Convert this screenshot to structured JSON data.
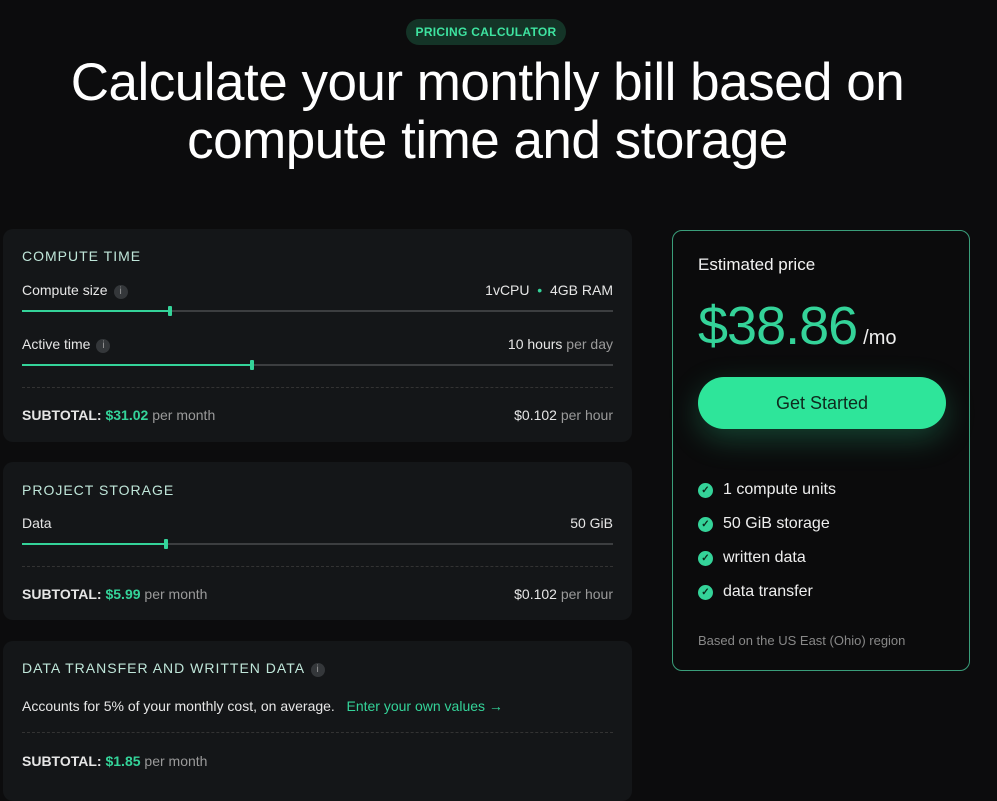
{
  "badge": "PRICING CALCULATOR",
  "title": "Calculate your monthly bill based on compute time and storage",
  "compute": {
    "title": "COMPUTE TIME",
    "size_label": "Compute size",
    "size_value_cpu": "1vCPU",
    "size_value_ram": "4GB RAM",
    "size_slider_fraction": 0.25,
    "active_label": "Active time",
    "active_value": "10 hours",
    "active_unit": "per day",
    "active_slider_fraction": 0.39,
    "subtotal_label": "SUBTOTAL:",
    "subtotal_value": "$31.02",
    "subtotal_unit": "per month",
    "rate": "$0.102",
    "rate_unit": "per hour"
  },
  "storage": {
    "title": "PROJECT STORAGE",
    "data_label": "Data",
    "data_value": "50 GiB",
    "data_slider_fraction": 0.244,
    "subtotal_label": "SUBTOTAL:",
    "subtotal_value": "$5.99",
    "subtotal_unit": "per month",
    "rate": "$0.102",
    "rate_unit": "per hour"
  },
  "transfer": {
    "title": "DATA TRANSFER AND WRITTEN DATA",
    "desc": "Accounts for 5% of your monthly cost, on average.",
    "link": "Enter your own values →",
    "subtotal_label": "SUBTOTAL:",
    "subtotal_value": "$1.85",
    "subtotal_unit": "per month"
  },
  "estimate": {
    "label": "Estimated price",
    "amount": "$38.86",
    "period": "/mo",
    "cta": "Get Started",
    "features": [
      "1 compute units",
      "50 GiB storage",
      "written data",
      "data transfer"
    ],
    "region": "Based on the US East (Ohio) region"
  },
  "colors": {
    "accent": "#34d399",
    "background": "#0c0c0d",
    "card": "#141618"
  }
}
